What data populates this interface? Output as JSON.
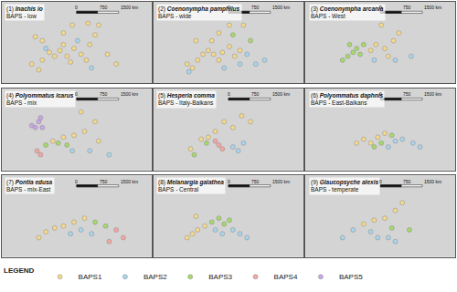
{
  "legend_title": "LEGEND",
  "chart_data": [
    {
      "type": "scatter",
      "title": "(1) Inachis io",
      "subtitle": "BAPS - low",
      "annotations": [
        "0",
        "750",
        "1500 km"
      ],
      "xlim": [
        -25,
        60
      ],
      "ylim": [
        30,
        72
      ],
      "tick_labels": false,
      "legend": "bottom",
      "series": [
        {
          "name": "BAPS1",
          "color": "#f5d98b",
          "x": [
            -8,
            -4,
            -2,
            2,
            5,
            8,
            10,
            12,
            14,
            16,
            20,
            23,
            25,
            28,
            30,
            24,
            15,
            10,
            -2,
            -6,
            35,
            40
          ],
          "values": [
            40,
            37,
            42,
            46,
            44,
            47,
            50,
            44,
            41,
            48,
            45,
            42,
            50,
            55,
            60,
            61,
            60,
            56,
            52,
            54,
            45,
            40
          ]
        },
        {
          "name": "BAPS2",
          "color": "#a8d4ec",
          "x": [
            0,
            18,
            26
          ],
          "values": [
            48,
            52,
            38
          ]
        }
      ]
    },
    {
      "type": "scatter",
      "title": "(2) Coenonympha pamphilus",
      "subtitle": "BAPS - wide",
      "annotations": [
        "0",
        "750",
        "1500 km"
      ],
      "xlim": [
        -25,
        60
      ],
      "ylim": [
        30,
        72
      ],
      "tick_labels": false,
      "legend": "bottom",
      "series": [
        {
          "name": "BAPS1",
          "color": "#f5d98b",
          "x": [
            -6,
            -3,
            0,
            3,
            6,
            9,
            12,
            14,
            18,
            21,
            24,
            8,
            -1,
            12,
            18,
            26
          ],
          "values": [
            40,
            38,
            42,
            45,
            47,
            45,
            42,
            46,
            49,
            44,
            47,
            52,
            52,
            56,
            60,
            60
          ]
        },
        {
          "name": "BAPS2",
          "color": "#a8d4ec",
          "x": [
            28,
            33,
            38,
            24,
            15,
            -5
          ],
          "values": [
            45,
            40,
            42,
            40,
            38,
            36
          ]
        },
        {
          "name": "BAPS3",
          "color": "#a6d96a",
          "x": [
            20,
            30
          ],
          "values": [
            55,
            52
          ]
        }
      ]
    },
    {
      "type": "scatter",
      "title": "(3) Coenonympha arcania",
      "subtitle": "BAPS - West",
      "annotations": [
        "0",
        "750",
        "1500 km"
      ],
      "xlim": [
        -25,
        60
      ],
      "ylim": [
        30,
        72
      ],
      "tick_labels": false,
      "legend": "bottom",
      "series": [
        {
          "name": "BAPS1",
          "color": "#f5d98b",
          "x": [
            12,
            15,
            20,
            25,
            28,
            22,
            18
          ],
          "values": [
            47,
            50,
            48,
            52,
            56,
            44,
            60
          ]
        },
        {
          "name": "BAPS2",
          "color": "#a8d4ec",
          "x": [
            14,
            26,
            35
          ],
          "values": [
            42,
            42,
            44
          ]
        },
        {
          "name": "BAPS3",
          "color": "#a6d96a",
          "x": [
            -4,
            -1,
            2,
            4,
            6,
            8,
            0
          ],
          "values": [
            42,
            44,
            46,
            48,
            45,
            50,
            50
          ]
        }
      ]
    },
    {
      "type": "scatter",
      "title": "(4) Polyommatus icarus",
      "subtitle": "BAPS - mix",
      "annotations": [
        "0",
        "750",
        "1500 km"
      ],
      "xlim": [
        -25,
        60
      ],
      "ylim": [
        30,
        72
      ],
      "tick_labels": false,
      "legend": "bottom",
      "series": [
        {
          "name": "BAPS1",
          "color": "#f5d98b",
          "x": [
            4,
            10,
            16,
            22,
            28,
            20,
            30
          ],
          "values": [
            45,
            47,
            48,
            50,
            55,
            60,
            45
          ]
        },
        {
          "name": "BAPS2",
          "color": "#a8d4ec",
          "x": [
            25,
            36,
            15
          ],
          "values": [
            40,
            38,
            40
          ]
        },
        {
          "name": "BAPS3",
          "color": "#a6d96a",
          "x": [
            0,
            7,
            12
          ],
          "values": [
            43,
            44,
            43
          ]
        },
        {
          "name": "BAPS4",
          "color": "#f4a6a0",
          "x": [
            -5,
            -3
          ],
          "values": [
            40,
            38
          ]
        },
        {
          "name": "BAPS5",
          "color": "#c9a6e4",
          "x": [
            -8,
            -4,
            -2,
            -6,
            -3
          ],
          "values": [
            53,
            55,
            52,
            52,
            57
          ]
        }
      ]
    },
    {
      "type": "scatter",
      "title": "(5) Hesperia comma",
      "subtitle": "BAPS - Italy-Balkans",
      "annotations": [
        "0",
        "750",
        "1500 km"
      ],
      "xlim": [
        -25,
        60
      ],
      "ylim": [
        30,
        72
      ],
      "tick_labels": false,
      "legend": "bottom",
      "series": [
        {
          "name": "BAPS1",
          "color": "#f5d98b",
          "x": [
            -4,
            2,
            6,
            10,
            15,
            20,
            25,
            30
          ],
          "values": [
            41,
            46,
            47,
            50,
            55,
            52,
            58,
            55
          ]
        },
        {
          "name": "BAPS2",
          "color": "#a8d4ec",
          "x": [
            20,
            23,
            26
          ],
          "values": [
            42,
            40,
            44
          ]
        },
        {
          "name": "BAPS3",
          "color": "#a6d96a",
          "x": [
            -2,
            5
          ],
          "values": [
            38,
            44
          ]
        },
        {
          "name": "BAPS4",
          "color": "#f4a6a0",
          "x": [
            12,
            14,
            10
          ],
          "values": [
            43,
            41,
            45
          ]
        }
      ]
    },
    {
      "type": "scatter",
      "title": "(6) Polyommatus daphnis",
      "subtitle": "BAPS - East-Balkans",
      "annotations": [
        "0",
        "750",
        "1500 km"
      ],
      "xlim": [
        -25,
        60
      ],
      "ylim": [
        30,
        72
      ],
      "tick_labels": false,
      "legend": "bottom",
      "series": [
        {
          "name": "BAPS1",
          "color": "#f5d98b",
          "x": [
            4,
            8,
            12,
            16,
            20
          ],
          "values": [
            44,
            46,
            44,
            47,
            49
          ]
        },
        {
          "name": "BAPS2",
          "color": "#a8d4ec",
          "x": [
            22,
            26,
            30,
            36,
            40
          ],
          "values": [
            42,
            45,
            46,
            44,
            42
          ]
        },
        {
          "name": "BAPS3",
          "color": "#a6d96a",
          "x": [
            14,
            18,
            24
          ],
          "values": [
            42,
            44,
            48
          ]
        }
      ]
    },
    {
      "type": "scatter",
      "title": "(7) Pontia edusa",
      "subtitle": "BAPS - mix-East",
      "annotations": [
        "0",
        "750",
        "1500 km"
      ],
      "xlim": [
        -25,
        60
      ],
      "ylim": [
        30,
        72
      ],
      "tick_labels": false,
      "legend": "bottom",
      "series": [
        {
          "name": "BAPS1",
          "color": "#f5d98b",
          "x": [
            -4,
            0,
            5,
            10,
            16,
            22
          ],
          "values": [
            40,
            43,
            45,
            46,
            48,
            50
          ]
        },
        {
          "name": "BAPS2",
          "color": "#a8d4ec",
          "x": [
            14,
            20,
            26
          ],
          "values": [
            42,
            44,
            42
          ]
        },
        {
          "name": "BAPS3",
          "color": "#a6d96a",
          "x": [
            28,
            34
          ],
          "values": [
            48,
            46
          ]
        },
        {
          "name": "BAPS4",
          "color": "#f4a6a0",
          "x": [
            40,
            44,
            36
          ],
          "values": [
            44,
            40,
            38
          ]
        }
      ]
    },
    {
      "type": "scatter",
      "title": "(8) Melanargia galathea",
      "subtitle": "BAPS - Central",
      "annotations": [
        "0",
        "750",
        "1500 km"
      ],
      "xlim": [
        -25,
        60
      ],
      "ylim": [
        30,
        72
      ],
      "tick_labels": false,
      "legend": "bottom",
      "series": [
        {
          "name": "BAPS1",
          "color": "#f5d98b",
          "x": [
            -6,
            -3,
            0,
            4,
            -1
          ],
          "values": [
            40,
            42,
            44,
            46,
            51
          ]
        },
        {
          "name": "BAPS2",
          "color": "#a8d4ec",
          "x": [
            10,
            14,
            20,
            24,
            28
          ],
          "values": [
            44,
            42,
            44,
            42,
            40
          ]
        },
        {
          "name": "BAPS3",
          "color": "#a6d96a",
          "x": [
            8,
            12,
            15,
            18
          ],
          "values": [
            48,
            50,
            47,
            49
          ]
        }
      ]
    },
    {
      "type": "scatter",
      "title": "(9) Glaucopsyche alexis",
      "subtitle": "BAPS - temperate",
      "annotations": [
        "0",
        "750",
        "1500 km"
      ],
      "xlim": [
        -25,
        60
      ],
      "ylim": [
        30,
        72
      ],
      "tick_labels": false,
      "legend": "bottom",
      "series": [
        {
          "name": "BAPS1",
          "color": "#f5d98b",
          "x": [
            8,
            14,
            20,
            26,
            30
          ],
          "values": [
            47,
            49,
            50,
            54,
            58
          ]
        },
        {
          "name": "BAPS2",
          "color": "#a8d4ec",
          "x": [
            -4,
            2,
            12,
            16,
            22,
            26
          ],
          "values": [
            40,
            44,
            43,
            40,
            40,
            38
          ]
        },
        {
          "name": "BAPS3",
          "color": "#a6d96a",
          "x": [
            24,
            34
          ],
          "values": [
            45,
            44
          ]
        }
      ]
    }
  ]
}
